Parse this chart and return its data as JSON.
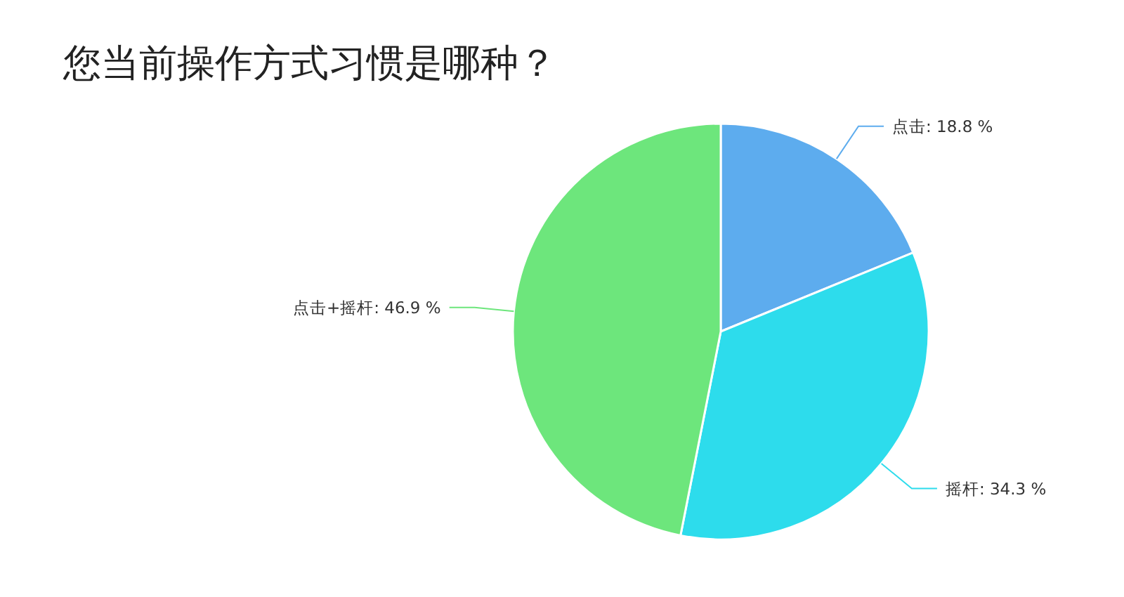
{
  "chart_data": {
    "type": "pie",
    "title": "您当前操作方式习惯是哪种？",
    "categories": [
      "点击",
      "摇杆",
      "点击+摇杆"
    ],
    "values": [
      18.8,
      34.3,
      46.9
    ],
    "value_labels": [
      ": 18.8 %",
      ": 34.3 %",
      ": 46.9 %"
    ],
    "colors": [
      "#5dacee",
      "#2ddcec",
      "#6de67c"
    ],
    "legend": false
  }
}
